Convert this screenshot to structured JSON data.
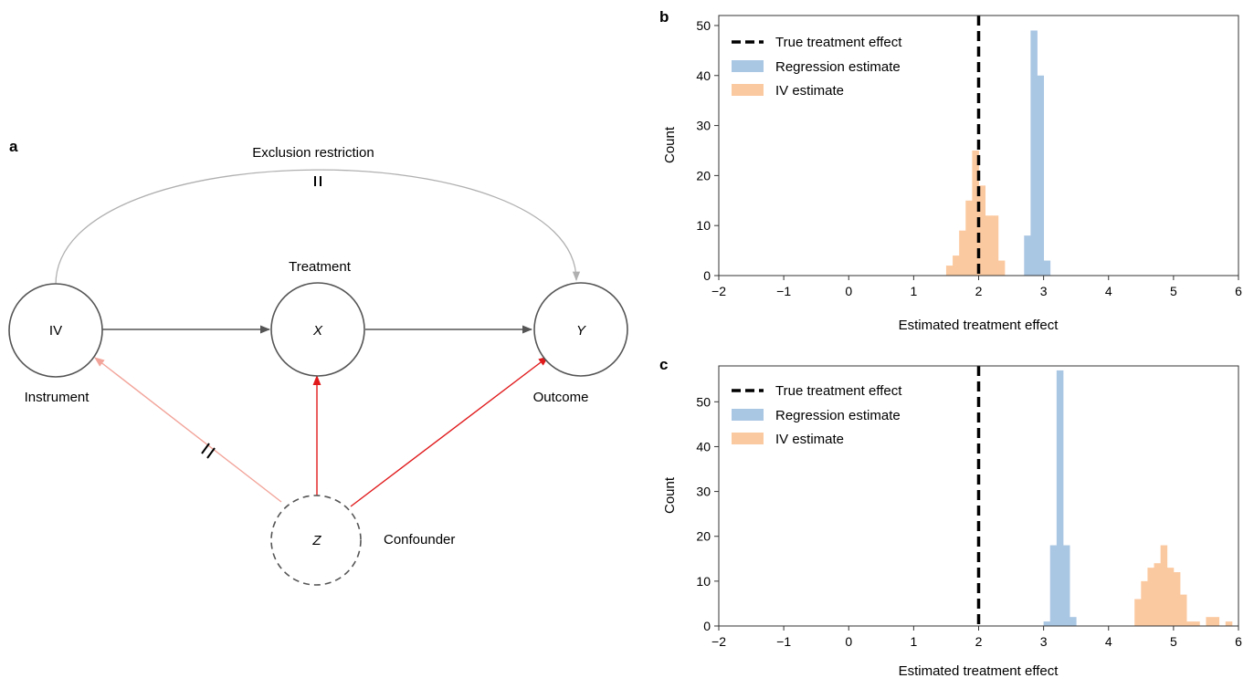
{
  "figure": {
    "panel_a_letter": "a",
    "panel_b_letter": "b",
    "panel_c_letter": "c"
  },
  "diagram": {
    "exclusion_label": "Exclusion restriction",
    "exclusion_mark": "=",
    "instrument_mark": "//",
    "nodes": {
      "iv": {
        "text": "IV",
        "caption": "Instrument"
      },
      "x": {
        "text": "X",
        "caption": "Treatment"
      },
      "y": {
        "text": "Y",
        "caption": "Outcome"
      },
      "z": {
        "text": "Z",
        "caption": "Confounder"
      }
    },
    "colors": {
      "edge": "#555555",
      "confounder_edge": "#e0191b",
      "confounder_faded_edge": "#f2a49a",
      "exclusion_edge": "#b0b0b0"
    }
  },
  "chart_data": [
    {
      "type": "bar",
      "panel": "b",
      "xlabel": "Estimated treatment effect",
      "ylabel": "Count",
      "xlim": [
        -2,
        6
      ],
      "ylim": [
        0,
        52
      ],
      "xticks": [
        "-2",
        "-1",
        "0",
        "1",
        "2",
        "3",
        "4",
        "5",
        "6"
      ],
      "yticks": [
        "0",
        "10",
        "20",
        "30",
        "40",
        "50"
      ],
      "true_effect": 2,
      "legend_position": "top-left",
      "legend": [
        "True treatment effect",
        "Regression estimate",
        "IV estimate"
      ],
      "series": [
        {
          "name": "Regression estimate",
          "color": "#a9c6e3",
          "bins": [
            [
              2.7,
              2.8,
              8
            ],
            [
              2.8,
              2.9,
              49
            ],
            [
              2.9,
              3.0,
              40
            ],
            [
              3.0,
              3.1,
              3
            ]
          ]
        },
        {
          "name": "IV estimate",
          "color": "#fbc9a0",
          "bins": [
            [
              1.5,
              1.6,
              2
            ],
            [
              1.6,
              1.7,
              4
            ],
            [
              1.7,
              1.8,
              9
            ],
            [
              1.8,
              1.9,
              15
            ],
            [
              1.9,
              2.0,
              25
            ],
            [
              2.0,
              2.1,
              18
            ],
            [
              2.1,
              2.2,
              12
            ],
            [
              2.2,
              2.3,
              12
            ],
            [
              2.3,
              2.4,
              3
            ]
          ]
        }
      ]
    },
    {
      "type": "bar",
      "panel": "c",
      "xlabel": "Estimated treatment effect",
      "ylabel": "Count",
      "xlim": [
        -2,
        6
      ],
      "ylim": [
        0,
        58
      ],
      "xticks": [
        "-2",
        "-1",
        "0",
        "1",
        "2",
        "3",
        "4",
        "5",
        "6"
      ],
      "yticks": [
        "0",
        "10",
        "20",
        "30",
        "40",
        "50"
      ],
      "true_effect": 2,
      "legend_position": "top-left",
      "legend": [
        "True treatment effect",
        "Regression estimate",
        "IV estimate"
      ],
      "series": [
        {
          "name": "Regression estimate",
          "color": "#a9c6e3",
          "bins": [
            [
              3.0,
              3.1,
              1
            ],
            [
              3.1,
              3.2,
              18
            ],
            [
              3.2,
              3.3,
              57
            ],
            [
              3.3,
              3.4,
              18
            ],
            [
              3.4,
              3.5,
              2
            ]
          ]
        },
        {
          "name": "IV estimate",
          "color": "#fbc9a0",
          "bins": [
            [
              4.4,
              4.5,
              6
            ],
            [
              4.5,
              4.6,
              10
            ],
            [
              4.6,
              4.7,
              13
            ],
            [
              4.7,
              4.8,
              14
            ],
            [
              4.8,
              4.9,
              18
            ],
            [
              4.9,
              5.0,
              13
            ],
            [
              5.0,
              5.1,
              12
            ],
            [
              5.1,
              5.2,
              7
            ],
            [
              5.2,
              5.3,
              1
            ],
            [
              5.3,
              5.4,
              1
            ],
            [
              5.4,
              5.5,
              0
            ],
            [
              5.5,
              5.6,
              2
            ],
            [
              5.6,
              5.7,
              2
            ],
            [
              5.7,
              5.8,
              0
            ],
            [
              5.8,
              5.9,
              1
            ]
          ]
        }
      ]
    }
  ]
}
